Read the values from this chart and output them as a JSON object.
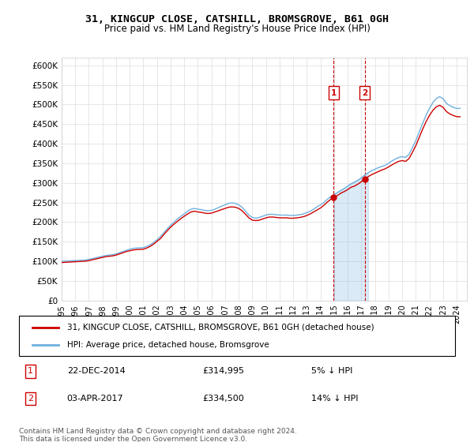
{
  "title": "31, KINGCUP CLOSE, CATSHILL, BROMSGROVE, B61 0GH",
  "subtitle": "Price paid vs. HM Land Registry's House Price Index (HPI)",
  "ylim": [
    0,
    620000
  ],
  "hpi_color": "#6eb0e0",
  "price_color": "#cc0000",
  "transaction1": {
    "date": "22-DEC-2014",
    "price": 314995,
    "note": "5% ↓ HPI",
    "label": "1"
  },
  "transaction2": {
    "date": "03-APR-2017",
    "price": 334500,
    "note": "14% ↓ HPI",
    "label": "2"
  },
  "legend1": "31, KINGCUP CLOSE, CATSHILL, BROMSGROVE, B61 0GH (detached house)",
  "legend2": "HPI: Average price, detached house, Bromsgrove",
  "footer": "Contains HM Land Registry data © Crown copyright and database right 2024.\nThis data is licensed under the Open Government Licence v3.0.",
  "hpi_data": {
    "years": [
      1995,
      1995.25,
      1995.5,
      1995.75,
      1996,
      1996.25,
      1996.5,
      1996.75,
      1997,
      1997.25,
      1997.5,
      1997.75,
      1998,
      1998.25,
      1998.5,
      1998.75,
      1999,
      1999.25,
      1999.5,
      1999.75,
      2000,
      2000.25,
      2000.5,
      2000.75,
      2001,
      2001.25,
      2001.5,
      2001.75,
      2002,
      2002.25,
      2002.5,
      2002.75,
      2003,
      2003.25,
      2003.5,
      2003.75,
      2004,
      2004.25,
      2004.5,
      2004.75,
      2005,
      2005.25,
      2005.5,
      2005.75,
      2006,
      2006.25,
      2006.5,
      2006.75,
      2007,
      2007.25,
      2007.5,
      2007.75,
      2008,
      2008.25,
      2008.5,
      2008.75,
      2009,
      2009.25,
      2009.5,
      2009.75,
      2010,
      2010.25,
      2010.5,
      2010.75,
      2011,
      2011.25,
      2011.5,
      2011.75,
      2012,
      2012.25,
      2012.5,
      2012.75,
      2013,
      2013.25,
      2013.5,
      2013.75,
      2014,
      2014.25,
      2014.5,
      2014.75,
      2015,
      2015.25,
      2015.5,
      2015.75,
      2016,
      2016.25,
      2016.5,
      2016.75,
      2017,
      2017.25,
      2017.5,
      2017.75,
      2018,
      2018.25,
      2018.5,
      2018.75,
      2019,
      2019.25,
      2019.5,
      2019.75,
      2020,
      2020.25,
      2020.5,
      2020.75,
      2021,
      2021.25,
      2021.5,
      2021.75,
      2022,
      2022.25,
      2022.5,
      2022.75,
      2023,
      2023.25,
      2023.5,
      2023.75,
      2024,
      2024.25
    ],
    "values": [
      100000,
      100500,
      101000,
      101500,
      102000,
      102500,
      103000,
      103500,
      105000,
      107000,
      109000,
      111000,
      113000,
      115000,
      116000,
      117000,
      119000,
      122000,
      125000,
      128000,
      131000,
      133000,
      134000,
      134500,
      135000,
      138000,
      142000,
      148000,
      155000,
      163000,
      173000,
      183000,
      192000,
      200000,
      208000,
      215000,
      221000,
      228000,
      233000,
      235000,
      233000,
      232000,
      230000,
      229000,
      230000,
      233000,
      237000,
      241000,
      244000,
      248000,
      249000,
      248000,
      244000,
      238000,
      228000,
      218000,
      212000,
      210000,
      212000,
      215000,
      218000,
      220000,
      220000,
      219000,
      218000,
      218000,
      218000,
      217000,
      217000,
      218000,
      219000,
      221000,
      224000,
      228000,
      233000,
      239000,
      244000,
      250000,
      258000,
      265000,
      270000,
      276000,
      281000,
      286000,
      292000,
      298000,
      302000,
      307000,
      313000,
      320000,
      326000,
      331000,
      335000,
      339000,
      342000,
      345000,
      350000,
      356000,
      361000,
      365000,
      367000,
      365000,
      373000,
      390000,
      408000,
      430000,
      452000,
      472000,
      490000,
      505000,
      515000,
      520000,
      515000,
      503000,
      497000,
      493000,
      490000,
      490000,
      495000,
      505000,
      515000,
      520000
    ]
  },
  "price_data": {
    "years": [
      1995,
      1995.25,
      1995.5,
      1995.75,
      1996,
      1996.25,
      1996.5,
      1996.75,
      1997,
      1997.25,
      1997.5,
      1997.75,
      1998,
      1998.25,
      1998.5,
      1998.75,
      1999,
      1999.25,
      1999.5,
      1999.75,
      2000,
      2000.25,
      2000.5,
      2000.75,
      2001,
      2001.25,
      2001.5,
      2001.75,
      2002,
      2002.25,
      2002.5,
      2002.75,
      2003,
      2003.25,
      2003.5,
      2003.75,
      2004,
      2004.25,
      2004.5,
      2004.75,
      2005,
      2005.25,
      2005.5,
      2005.75,
      2006,
      2006.25,
      2006.5,
      2006.75,
      2007,
      2007.25,
      2007.5,
      2007.75,
      2008,
      2008.25,
      2008.5,
      2008.75,
      2009,
      2009.25,
      2009.5,
      2009.75,
      2010,
      2010.25,
      2010.5,
      2010.75,
      2011,
      2011.25,
      2011.5,
      2011.75,
      2012,
      2012.25,
      2012.5,
      2012.75,
      2013,
      2013.25,
      2013.5,
      2013.75,
      2014,
      2014.25,
      2014.5,
      2014.75,
      2015,
      2015.25,
      2015.5,
      2015.75,
      2016,
      2016.25,
      2016.5,
      2016.75,
      2017,
      2017.25,
      2017.5,
      2017.75,
      2018,
      2018.25,
      2018.5,
      2018.75,
      2019,
      2019.25,
      2019.5,
      2019.75,
      2020,
      2020.25,
      2020.5,
      2020.75,
      2021,
      2021.25,
      2021.5,
      2021.75,
      2022,
      2022.25,
      2022.5,
      2022.75,
      2023,
      2023.25,
      2023.5,
      2023.75,
      2024,
      2024.25
    ],
    "values": [
      97000,
      97500,
      98000,
      98500,
      99000,
      99500,
      100000,
      100500,
      102000,
      104000,
      106000,
      108000,
      110000,
      112000,
      113000,
      114000,
      116000,
      119000,
      122000,
      125000,
      127000,
      129000,
      130000,
      130500,
      131000,
      134000,
      138000,
      144000,
      151000,
      158000,
      168000,
      178000,
      187000,
      195000,
      202000,
      209000,
      215000,
      221000,
      226000,
      228000,
      226000,
      225000,
      223000,
      222000,
      223000,
      226000,
      229000,
      232000,
      235000,
      238000,
      239000,
      238000,
      235000,
      229000,
      220000,
      211000,
      205000,
      204000,
      205000,
      208000,
      211000,
      213000,
      213000,
      212000,
      211000,
      211000,
      211000,
      210000,
      210000,
      211000,
      212000,
      214000,
      217000,
      221000,
      226000,
      231000,
      236000,
      243000,
      251000,
      258000,
      263000,
      268000,
      274000,
      278000,
      283000,
      289000,
      292000,
      297000,
      303000,
      310000,
      316000,
      321000,
      325000,
      329000,
      333000,
      336000,
      341000,
      346000,
      351000,
      355000,
      357000,
      355000,
      362000,
      378000,
      395000,
      416000,
      437000,
      456000,
      472000,
      485000,
      494000,
      498000,
      493000,
      482000,
      476000,
      472000,
      469000,
      469000,
      474000,
      483000,
      492000,
      497000
    ]
  },
  "transaction1_x": 2014.97,
  "transaction2_x": 2017.25
}
